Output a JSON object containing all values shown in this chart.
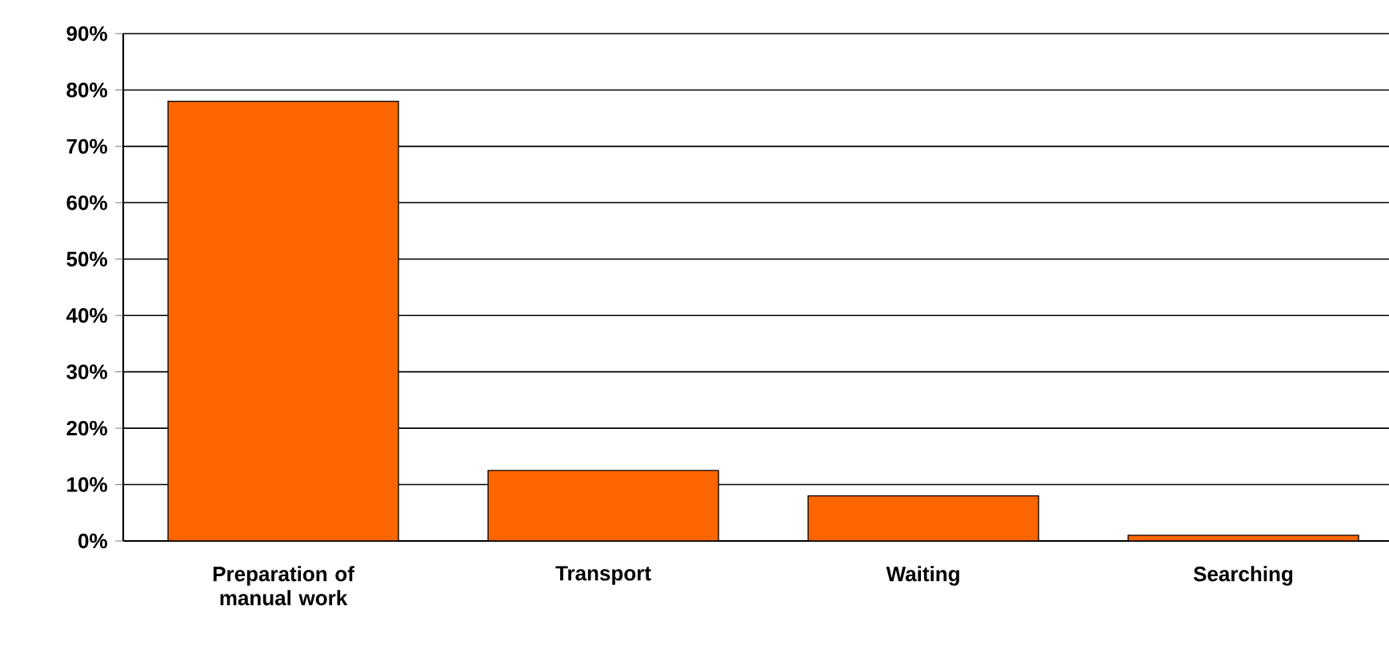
{
  "chart_data": {
    "type": "bar",
    "categories": [
      "Preparation of manual work",
      "Transport",
      "Waiting",
      "Searching"
    ],
    "values": [
      78,
      12.5,
      8,
      1
    ],
    "color": "#ff6600",
    "ylim": [
      0,
      90
    ],
    "yticks": [
      {
        "value": 0,
        "label": "0%"
      },
      {
        "value": 10,
        "label": "10%"
      },
      {
        "value": 20,
        "label": "20%"
      },
      {
        "value": 30,
        "label": "30%"
      },
      {
        "value": 40,
        "label": "40%"
      },
      {
        "value": 50,
        "label": "50%"
      },
      {
        "value": 60,
        "label": "60%"
      },
      {
        "value": 70,
        "label": "70%"
      },
      {
        "value": 80,
        "label": "80%"
      },
      {
        "value": 90,
        "label": "90%"
      }
    ],
    "grid": "y"
  }
}
